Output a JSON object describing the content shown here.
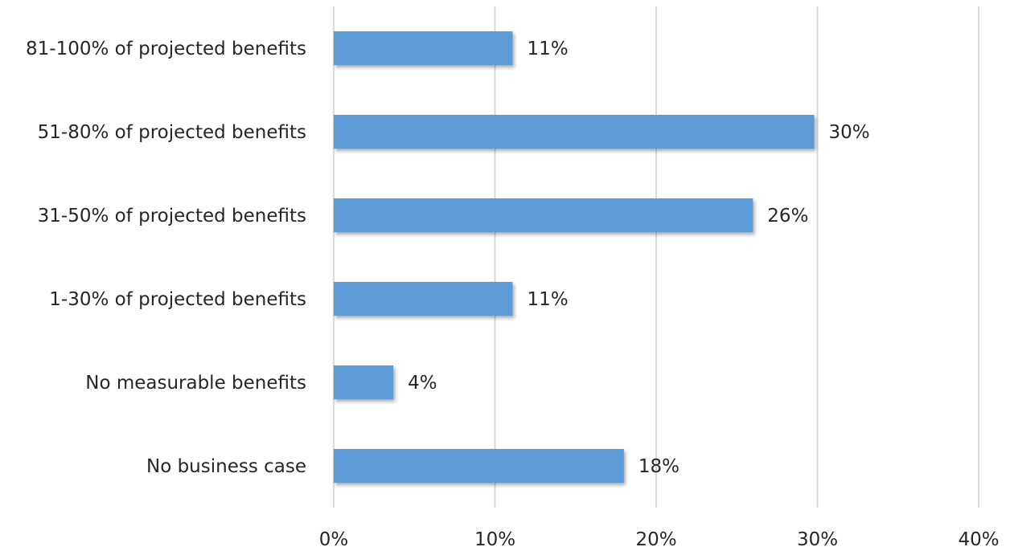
{
  "chart_data": {
    "type": "bar",
    "orientation": "horizontal",
    "categories": [
      "81-100% of projected benefits",
      "51-80% of projected benefits",
      "31-50% of projected benefits",
      "1-30% of projected benefits",
      "No measurable benefits",
      "No business case"
    ],
    "values": [
      11,
      30,
      26,
      11,
      4,
      18
    ],
    "plot_values": [
      11.1,
      29.8,
      26.0,
      11.1,
      3.7,
      18.0
    ],
    "data_labels": [
      "11%",
      "30%",
      "26%",
      "11%",
      "4%",
      "18%"
    ],
    "x_ticks": [
      0,
      10,
      20,
      30,
      40
    ],
    "x_tick_labels": [
      "0%",
      "10%",
      "20%",
      "30%",
      "40%"
    ],
    "xlim": [
      0,
      40
    ],
    "title": "",
    "xlabel": "",
    "ylabel": "",
    "grid": "vertical",
    "legend": "none",
    "colors": {
      "bar": "#5b9bd5",
      "grid": "#d9d9d9",
      "text": "#262626"
    }
  }
}
